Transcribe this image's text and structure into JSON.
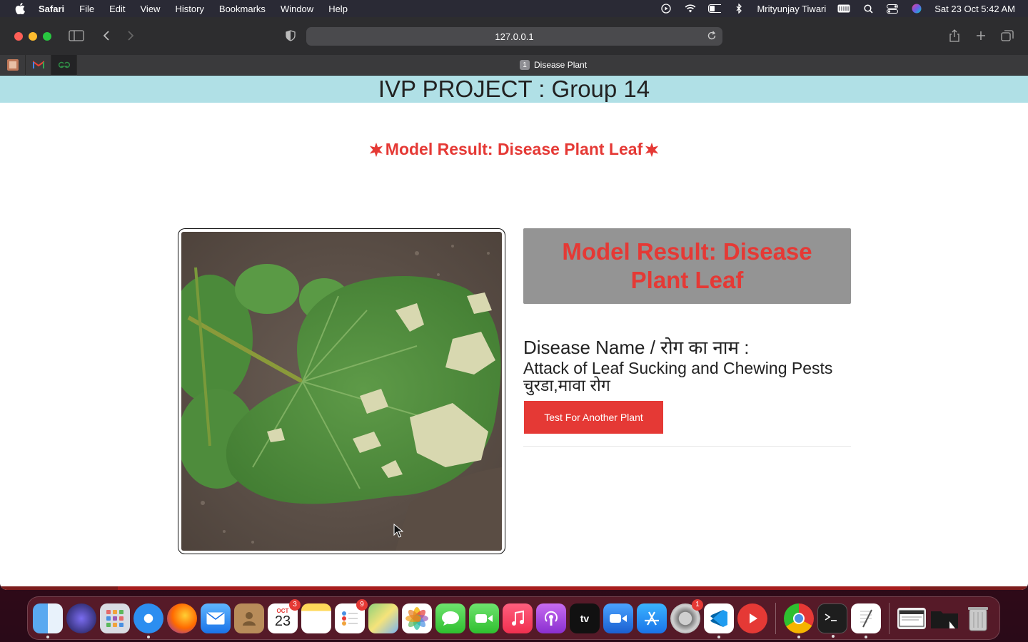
{
  "menubar": {
    "app": "Safari",
    "items": [
      "File",
      "Edit",
      "View",
      "History",
      "Bookmarks",
      "Window",
      "Help"
    ],
    "user": "Mrityunjay Tiwari",
    "datetime": "Sat 23 Oct  5:42 AM"
  },
  "browser": {
    "url": "127.0.0.1",
    "tab_number": "1",
    "tab_title": "Disease Plant"
  },
  "page": {
    "header": "IVP PROJECT : Group 14",
    "result_title": "Model Result: Disease Plant Leaf",
    "result_box": "Model Result: Disease Plant Leaf",
    "disease_label": "Disease Name / रोग का नाम :",
    "disease_name": "Attack of Leaf Sucking and Chewing Pests चुरडा,मावा रोग",
    "button": "Test For Another Plant"
  },
  "dock": {
    "calendar_month": "OCT",
    "calendar_day": "23",
    "calendar_badge": "3",
    "reminders_badge": "9",
    "settings_badge": "1",
    "appletv_label": "tv"
  },
  "colors": {
    "header_bg": "#b0e0e6",
    "accent_red": "#e53935",
    "result_box_bg": "#949494"
  }
}
